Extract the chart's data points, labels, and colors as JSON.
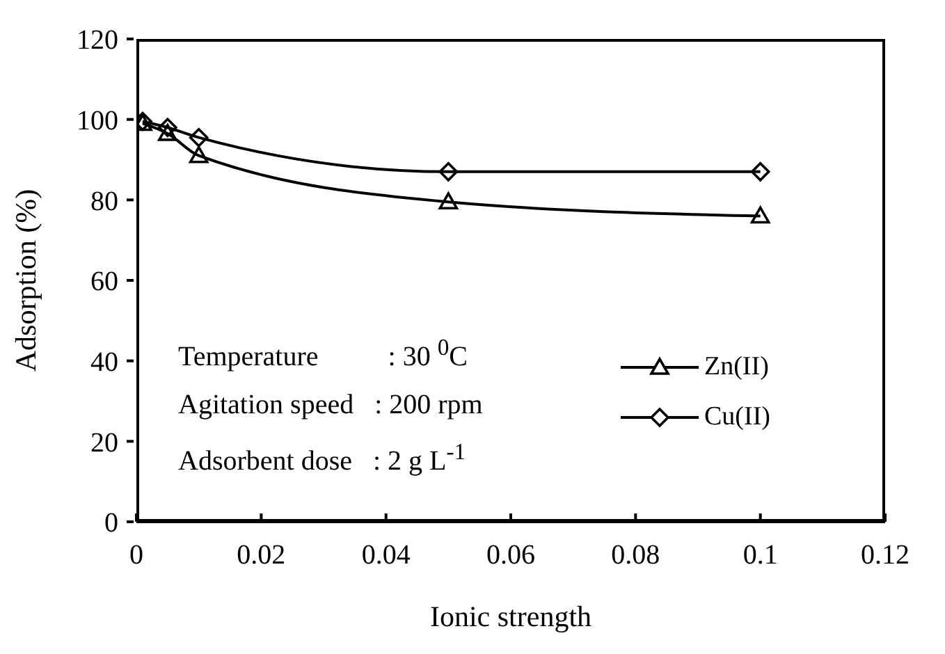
{
  "chart_data": {
    "type": "line",
    "xlabel": "Ionic strength",
    "ylabel": "Adsorption (%)",
    "xlim": [
      0,
      0.12
    ],
    "xticks": [
      0,
      0.02,
      0.04,
      0.06,
      0.08,
      0.1,
      0.12
    ],
    "ylim": [
      0,
      120
    ],
    "yticks": [
      0,
      20,
      40,
      60,
      80,
      100,
      120
    ],
    "grid": false,
    "legend": "right",
    "annotations": [
      "Temperature          : 30 $^{0}$C",
      "Agitation speed   : 200 rpm",
      "Adsorbent dose   : 2 g L$^{-1}$"
    ],
    "series": [
      {
        "name": "Zn(II)",
        "color": "#000000",
        "marker": "triangle",
        "x": [
          0.001,
          0.005,
          0.01,
          0.05,
          0.1
        ],
        "values": [
          99,
          96.5,
          91,
          79.5,
          76
        ]
      },
      {
        "name": "Cu(II)",
        "color": "#000000",
        "marker": "diamond",
        "x": [
          0.001,
          0.005,
          0.01,
          0.05,
          0.1
        ],
        "values": [
          99.5,
          98,
          95.5,
          87,
          87
        ]
      }
    ]
  }
}
